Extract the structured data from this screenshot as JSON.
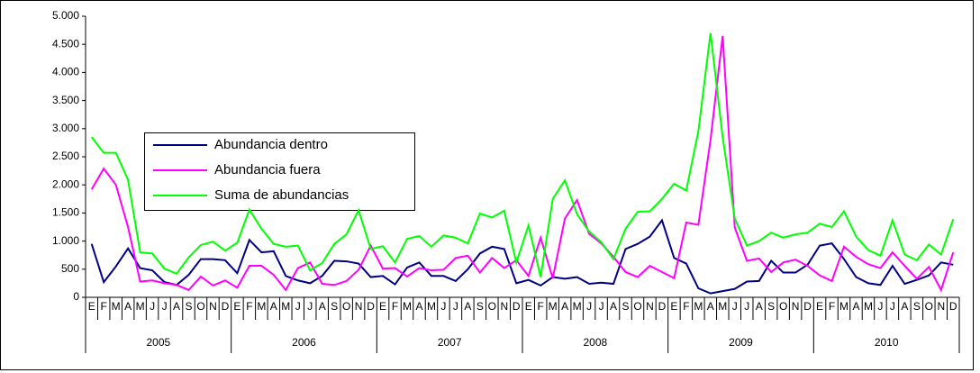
{
  "chart_data": {
    "type": "line",
    "categories": [
      "E",
      "F",
      "M",
      "A",
      "M",
      "J",
      "J",
      "A",
      "S",
      "O",
      "N",
      "D",
      "E",
      "F",
      "M",
      "A",
      "M",
      "J",
      "J",
      "A",
      "S",
      "O",
      "N",
      "D",
      "E",
      "F",
      "M",
      "A",
      "M",
      "J",
      "J",
      "A",
      "S",
      "O",
      "N",
      "D",
      "E",
      "F",
      "M",
      "A",
      "M",
      "J",
      "J",
      "A",
      "S",
      "O",
      "N",
      "D",
      "E",
      "F",
      "M",
      "A",
      "M",
      "J",
      "J",
      "A",
      "S",
      "O",
      "N",
      "D",
      "E",
      "F",
      "M",
      "A",
      "M",
      "J",
      "J",
      "A",
      "S",
      "O",
      "N",
      "D"
    ],
    "years": [
      "2005",
      "2006",
      "2007",
      "2008",
      "2009",
      "2010"
    ],
    "series": [
      {
        "name": "Abundancia dentro",
        "color": "#000080",
        "values": [
          950,
          270,
          550,
          870,
          520,
          480,
          270,
          220,
          400,
          680,
          680,
          660,
          430,
          1020,
          800,
          820,
          380,
          300,
          250,
          380,
          650,
          640,
          600,
          360,
          380,
          230,
          530,
          620,
          380,
          380,
          290,
          500,
          780,
          900,
          860,
          250,
          310,
          210,
          360,
          330,
          360,
          240,
          260,
          240,
          860,
          950,
          1080,
          1370,
          700,
          600,
          160,
          70,
          110,
          150,
          280,
          290,
          650,
          440,
          440,
          580,
          920,
          960,
          680,
          360,
          250,
          220,
          560,
          240,
          310,
          390,
          620,
          580
        ]
      },
      {
        "name": "Abundancia fuera",
        "color": "#ff00ff",
        "values": [
          1920,
          2290,
          2000,
          1250,
          280,
          300,
          250,
          220,
          130,
          370,
          210,
          300,
          170,
          560,
          560,
          400,
          130,
          520,
          620,
          240,
          220,
          290,
          490,
          920,
          510,
          520,
          370,
          520,
          480,
          490,
          700,
          740,
          440,
          700,
          520,
          660,
          380,
          1060,
          340,
          1400,
          1730,
          1130,
          960,
          720,
          450,
          360,
          560,
          450,
          340,
          1330,
          1290,
          2800,
          4650,
          1240,
          650,
          690,
          450,
          620,
          670,
          560,
          390,
          290,
          900,
          720,
          590,
          520,
          800,
          560,
          330,
          540,
          130,
          800
        ]
      },
      {
        "name": "Suma de abundancias",
        "color": "#00ff00",
        "values": [
          2850,
          2570,
          2570,
          2090,
          800,
          780,
          510,
          420,
          710,
          930,
          990,
          830,
          970,
          1560,
          1220,
          950,
          900,
          920,
          480,
          610,
          950,
          1120,
          1550,
          860,
          910,
          620,
          1040,
          1090,
          900,
          1100,
          1060,
          960,
          1490,
          1420,
          1540,
          620,
          1280,
          360,
          1750,
          2080,
          1480,
          1170,
          980,
          680,
          1220,
          1520,
          1530,
          1750,
          2020,
          1900,
          2960,
          4700,
          2850,
          1400,
          920,
          1000,
          1150,
          1060,
          1120,
          1150,
          1310,
          1250,
          1530,
          1080,
          840,
          740,
          1370,
          760,
          660,
          940,
          760,
          1390
        ]
      }
    ],
    "ylim": [
      0,
      5000
    ],
    "yticks": [
      0,
      {
        "value": 500,
        "label": "500"
      },
      {
        "value": 1000,
        "label": "1.000"
      },
      {
        "value": 1500,
        "label": "1.500"
      },
      {
        "value": 2000,
        "label": "2.000"
      },
      {
        "value": 2500,
        "label": "2.500"
      },
      {
        "value": 3000,
        "label": "3.000"
      },
      {
        "value": 3500,
        "label": "3.500"
      },
      {
        "value": 4000,
        "label": "4.000"
      },
      {
        "value": 4500,
        "label": "4.500"
      },
      {
        "value": 5000,
        "label": "5.000"
      }
    ]
  }
}
